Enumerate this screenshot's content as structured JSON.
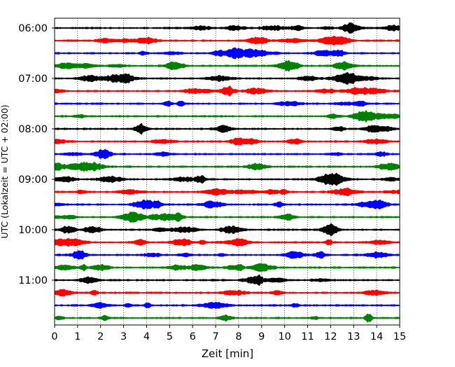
{
  "chart_data": {
    "type": "line",
    "title": "",
    "xlabel": "Zeit  [min]",
    "ylabel": "UTC (Lokalzeit = UTC + 02:00)",
    "xlim": [
      0,
      15
    ],
    "x_ticks": [
      "0",
      "1",
      "2",
      "3",
      "4",
      "5",
      "6",
      "7",
      "8",
      "9",
      "10",
      "11",
      "12",
      "13",
      "14",
      "15"
    ],
    "y_ticks": [
      "06:00",
      "07:00",
      "08:00",
      "09:00",
      "10:00",
      "11:00"
    ],
    "vertical_grid": true,
    "grid_style": "dotted",
    "trace_interval_minutes": 15,
    "traces_per_hour": 4,
    "trace_colors": [
      "#000000",
      "#ff0000",
      "#0000ff",
      "#008000"
    ],
    "series": [
      {
        "start": "06:00",
        "color": "#000000"
      },
      {
        "start": "06:15",
        "color": "#ff0000"
      },
      {
        "start": "06:30",
        "color": "#0000ff"
      },
      {
        "start": "06:45",
        "color": "#008000"
      },
      {
        "start": "07:00",
        "color": "#000000"
      },
      {
        "start": "07:15",
        "color": "#ff0000"
      },
      {
        "start": "07:30",
        "color": "#0000ff"
      },
      {
        "start": "07:45",
        "color": "#008000"
      },
      {
        "start": "08:00",
        "color": "#000000"
      },
      {
        "start": "08:15",
        "color": "#ff0000"
      },
      {
        "start": "08:30",
        "color": "#0000ff"
      },
      {
        "start": "08:45",
        "color": "#008000"
      },
      {
        "start": "09:00",
        "color": "#000000"
      },
      {
        "start": "09:15",
        "color": "#ff0000"
      },
      {
        "start": "09:30",
        "color": "#0000ff"
      },
      {
        "start": "09:45",
        "color": "#008000"
      },
      {
        "start": "10:00",
        "color": "#000000"
      },
      {
        "start": "10:15",
        "color": "#ff0000"
      },
      {
        "start": "10:30",
        "color": "#0000ff"
      },
      {
        "start": "10:45",
        "color": "#008000"
      },
      {
        "start": "11:00",
        "color": "#000000"
      },
      {
        "start": "11:15",
        "color": "#ff0000"
      },
      {
        "start": "11:30",
        "color": "#0000ff"
      },
      {
        "start": "11:45",
        "color": "#008000"
      }
    ]
  }
}
